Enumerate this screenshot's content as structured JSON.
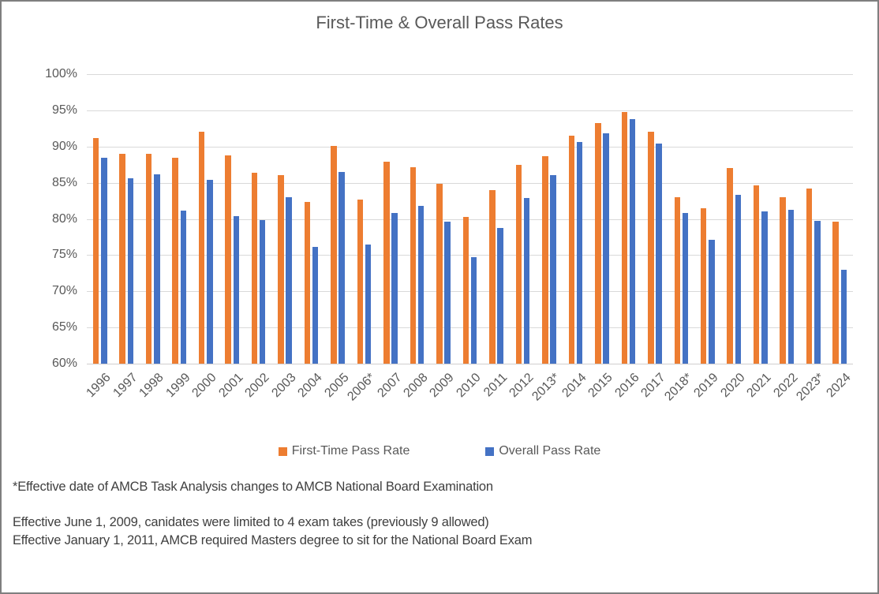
{
  "chart_data": {
    "type": "bar",
    "title": "First-Time & Overall Pass Rates",
    "categories": [
      "1996",
      "1997",
      "1998",
      "1999",
      "2000",
      "2001",
      "2002",
      "2003",
      "2004",
      "2005",
      "2006*",
      "2007",
      "2008",
      "2009",
      "2010",
      "2011",
      "2012",
      "2013*",
      "2014",
      "2015",
      "2016",
      "2017",
      "2018*",
      "2019",
      "2020",
      "2021",
      "2022",
      "2023*",
      "2024"
    ],
    "series": [
      {
        "name": "First-Time Pass Rate",
        "color": "#ED7D31",
        "values": [
          91.2,
          89.0,
          89.0,
          88.5,
          92.0,
          88.8,
          86.4,
          86.0,
          82.3,
          90.1,
          82.7,
          87.9,
          87.1,
          84.9,
          80.3,
          84.0,
          87.5,
          88.7,
          91.5,
          93.2,
          94.8,
          92.1,
          83.0,
          81.5,
          87.0,
          84.6,
          83.0,
          84.2,
          79.6
        ]
      },
      {
        "name": "Overall Pass Rate",
        "color": "#4472C4",
        "values": [
          88.4,
          85.6,
          86.2,
          81.2,
          85.4,
          80.4,
          79.8,
          83.0,
          76.1,
          86.5,
          76.5,
          80.8,
          81.8,
          79.6,
          74.7,
          78.7,
          82.9,
          86.0,
          90.6,
          91.8,
          93.8,
          90.4,
          80.8,
          77.1,
          83.3,
          81.0,
          81.3,
          79.7,
          73.0
        ]
      }
    ],
    "xlabel": "",
    "ylabel": "",
    "ylim": [
      60,
      100
    ],
    "ytick_step": 5,
    "ytick_labels": [
      "100%",
      "95%",
      "90%",
      "85%",
      "80%",
      "75%",
      "70%",
      "65%",
      "60%"
    ],
    "grid": true,
    "legend_position": "bottom"
  },
  "footnotes": [
    "*Effective date of AMCB Task Analysis changes to AMCB National Board Examination",
    "Effective June 1, 2009, canidates were limited to 4 exam takes (previously 9 allowed)",
    "Effective January 1, 2011, AMCB required Masters degree to sit for the National Board Exam"
  ],
  "colors": {
    "first_time": "#ED7D31",
    "overall": "#4472C4",
    "gridline": "#D9D9D9",
    "text": "#595959",
    "border": "#7F7F7F"
  }
}
